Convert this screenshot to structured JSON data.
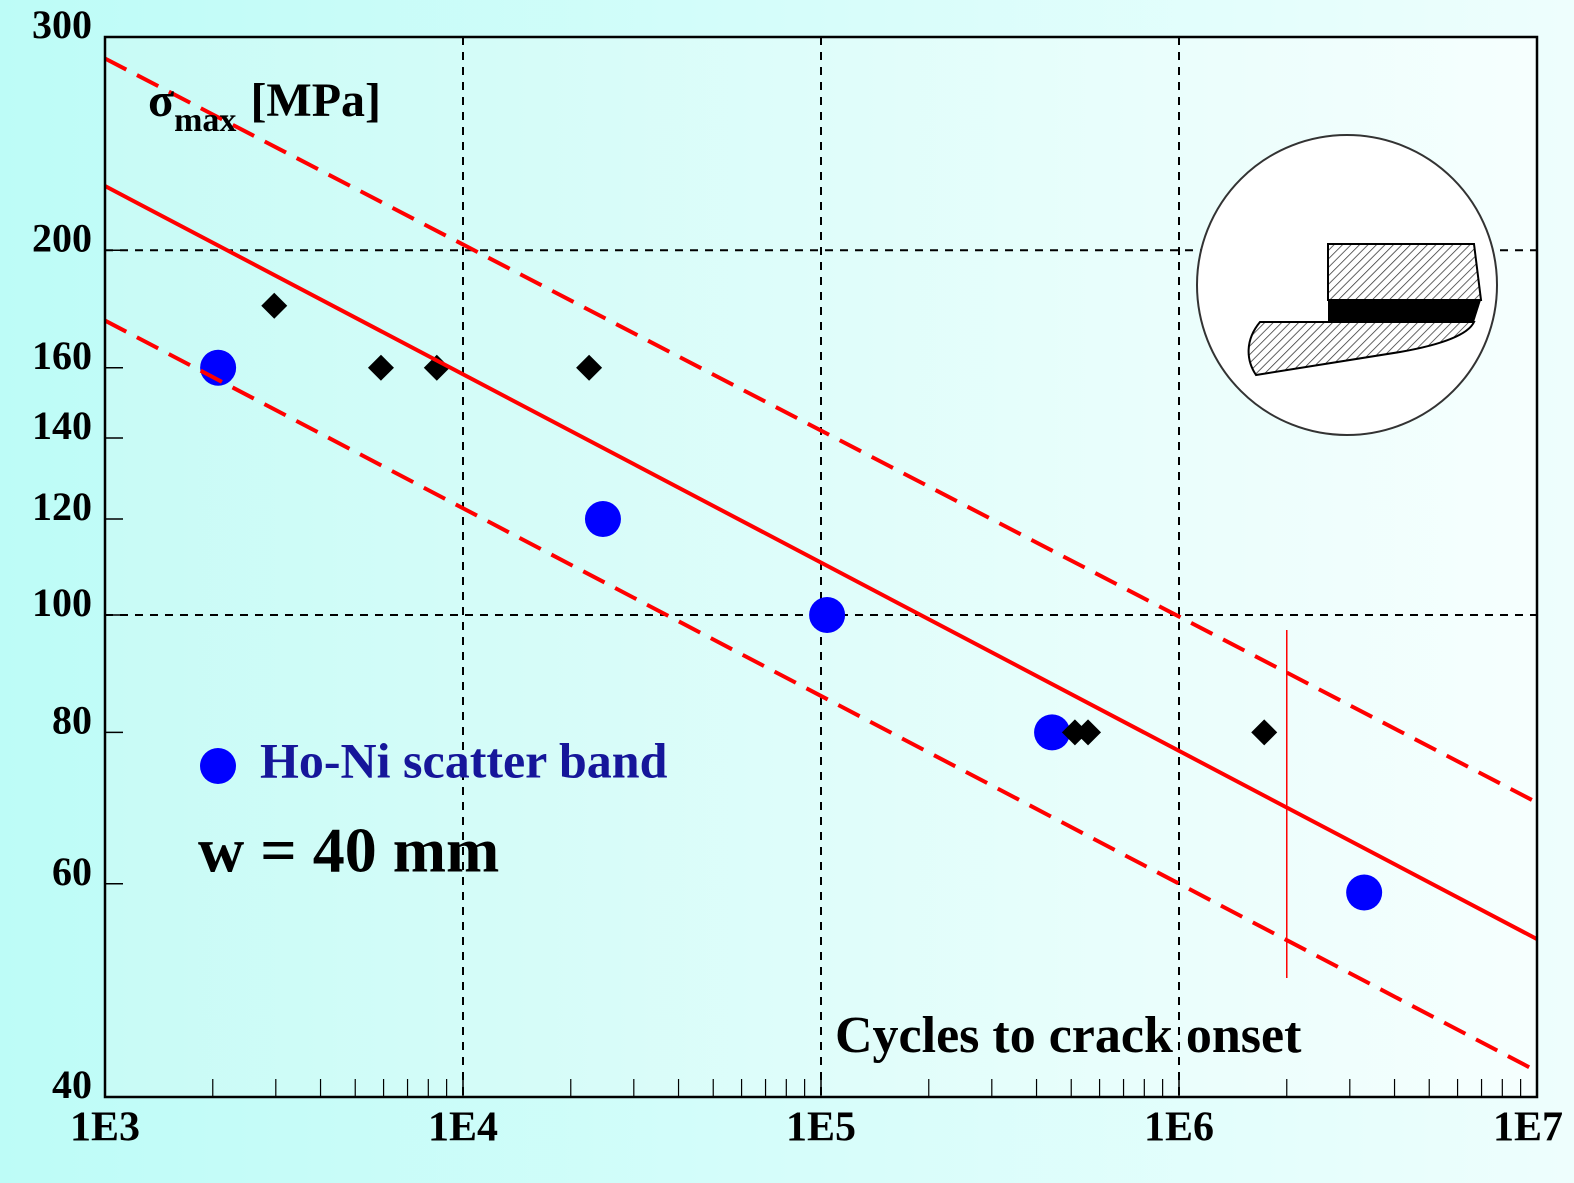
{
  "chart_data": {
    "type": "scatter",
    "ylabel": {
      "symbol": "σ",
      "subscript": "max",
      "unit": "[MPa]"
    },
    "xlabel": "Cycles to crack onset",
    "annotation": "w = 40 mm",
    "xlog": true,
    "ylog": true,
    "xlim": [
      1000,
      10000000
    ],
    "ylim": [
      40,
      300
    ],
    "xticks": [
      {
        "value": 1000,
        "label": "1E3"
      },
      {
        "value": 10000,
        "label": "1E4"
      },
      {
        "value": 100000,
        "label": "1E5"
      },
      {
        "value": 1000000,
        "label": "1E6"
      },
      {
        "value": 10000000,
        "label": "1E7"
      }
    ],
    "yticks": [
      40,
      60,
      80,
      100,
      120,
      140,
      160,
      200,
      300
    ],
    "xgrid": [
      10000,
      100000,
      1000000
    ],
    "ygrid": [
      100,
      200
    ],
    "reference_x": 2000000,
    "series": [
      {
        "name": "Ho-Ni scatter band",
        "color": "#0000ff",
        "marker": "circle",
        "x": [
          2070,
          24600,
          104000,
          442000,
          3290000
        ],
        "values": [
          160,
          120,
          100,
          80,
          59
        ]
      },
      {
        "color": "#000000",
        "marker": "diamond",
        "x": [
          2970,
          5900,
          8450,
          22500,
          512000,
          557000,
          1730000
        ],
        "values": [
          180,
          160,
          160,
          160,
          80,
          80,
          80
        ]
      },
      {
        "color": "#ff0000",
        "line": "solid",
        "x": [
          1000,
          10000000
        ],
        "values": [
          226,
          54
        ]
      },
      {
        "color": "#ff0000",
        "line": "dashed",
        "x": [
          1000,
          10000000
        ],
        "values": [
          288,
          70
        ]
      },
      {
        "color": "#ff0000",
        "line": "dashed",
        "x": [
          1000,
          10000000
        ],
        "values": [
          175,
          42
        ]
      }
    ]
  }
}
